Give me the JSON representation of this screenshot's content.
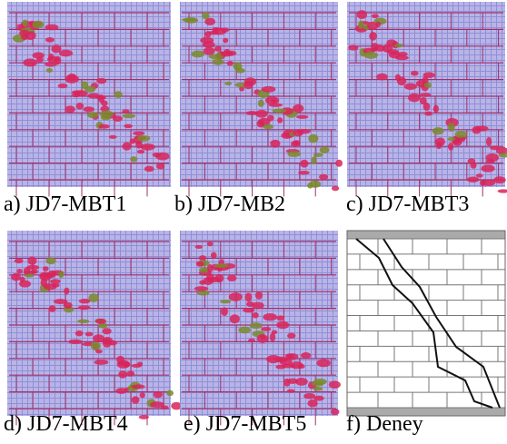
{
  "figure": {
    "panels": [
      {
        "caption": "a) JD7-MBT1"
      },
      {
        "caption": "b) JD7-MB2"
      },
      {
        "caption": "c) JD7-MBT3"
      },
      {
        "caption": "d) JD7-MBT4"
      },
      {
        "caption": "e) JD7-MBT5"
      },
      {
        "caption": "f) Deney"
      }
    ]
  }
}
